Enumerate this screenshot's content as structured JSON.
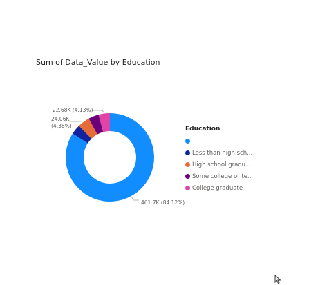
{
  "visual": {
    "title": "Sum of Data_Value by Education"
  },
  "chart_data": {
    "type": "pie",
    "variant": "donut",
    "title": "Sum of Data_Value by Education",
    "legend_position": "right",
    "legend_title": "Education",
    "slices": [
      {
        "category": "",
        "value": 461.7,
        "unit": "K",
        "percent": 84.12,
        "label": "461.7K (84.12%)",
        "color": "#118DFF"
      },
      {
        "category": "Less than high sch...",
        "value": 19.9,
        "unit": "K",
        "percent": 3.62,
        "label": "",
        "color": "#12239E"
      },
      {
        "category": "High school gradu...",
        "value": 24.06,
        "unit": "K",
        "percent": 4.38,
        "label": "24.06K (4.38%)",
        "color": "#E66C37"
      },
      {
        "category": "Some college or te...",
        "value": 21.0,
        "unit": "K",
        "percent": 3.83,
        "label": "",
        "color": "#6B007B"
      },
      {
        "category": "College graduate",
        "value": 22.68,
        "unit": "K",
        "percent": 4.13,
        "label": "22.68K (4.13%)",
        "color": "#E044A7"
      }
    ],
    "data_labels": {
      "big": {
        "line1": "461.7K (84.12%)"
      },
      "top": {
        "line1": "22.68K (4.13%)"
      },
      "left": {
        "line1": "24.06K",
        "line2": "(4.38%)"
      }
    }
  }
}
